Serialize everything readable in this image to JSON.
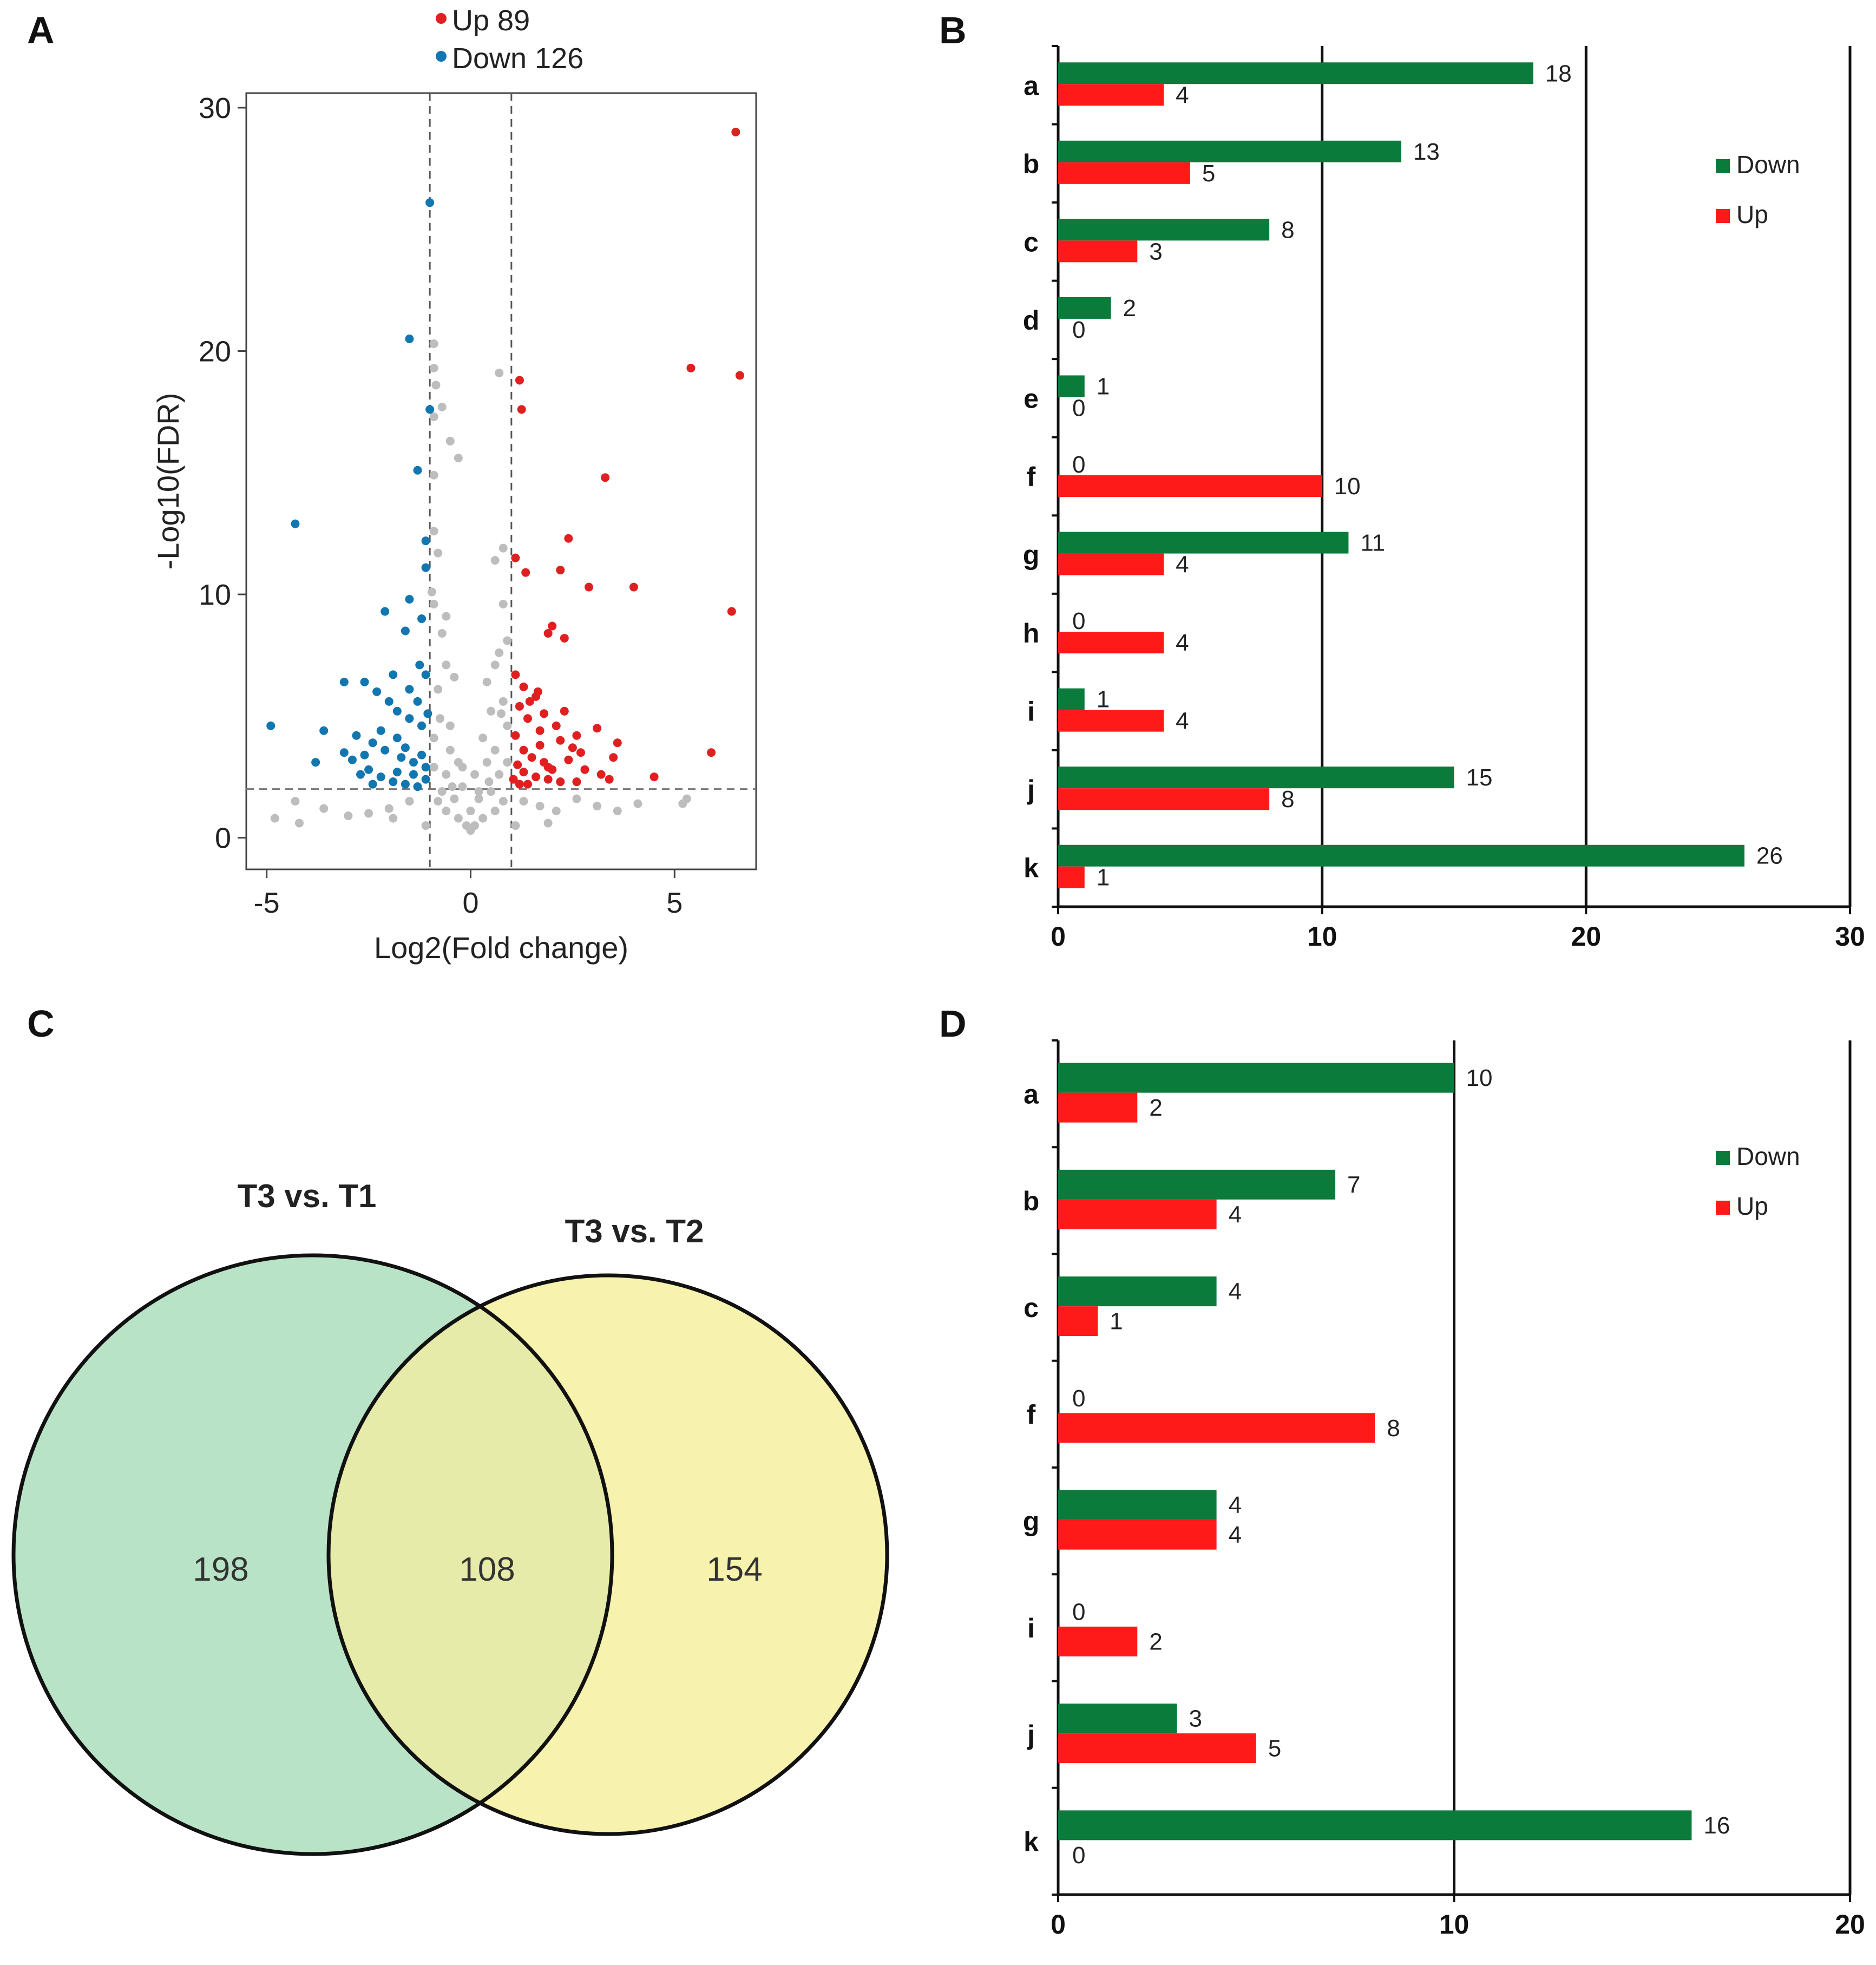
{
  "panels": {
    "A": "A",
    "B": "B",
    "C": "C",
    "D": "D"
  },
  "colors": {
    "up": "#e02020",
    "down": "#1276b0",
    "ns": "#bdbdbd",
    "bar_down": "#0a7b3a",
    "bar_up": "#ff1a1a",
    "venn_left": "#b9e3c6",
    "venn_right": "#f7f2ae",
    "venn_overlap": "#e6ebaa"
  },
  "chart_data": [
    {
      "type": "scatter",
      "id": "volcano",
      "title": "",
      "xlabel": "Log2(Fold change)",
      "ylabel": "-Log10(FDR)",
      "xlim": [
        -5.5,
        7
      ],
      "ylim": [
        -1.3,
        30.6
      ],
      "xticks": [
        "-5",
        "0",
        "5"
      ],
      "xtick_values": [
        -5,
        0,
        5
      ],
      "yticks": [
        "0",
        "10",
        "20",
        "30"
      ],
      "ytick_values": [
        0,
        10,
        20,
        30
      ],
      "thresholds": {
        "log2fc": [
          -1,
          1
        ],
        "neg_log10_fdr": 2
      },
      "legend": [
        {
          "label": "Up 89",
          "series": "up"
        },
        {
          "label": "Down 126",
          "series": "down"
        }
      ],
      "series": [
        {
          "name": "up",
          "points": [
            [
              6.5,
              29
            ],
            [
              5.4,
              19.3
            ],
            [
              6.6,
              19
            ],
            [
              1.2,
              18.8
            ],
            [
              1.25,
              17.6
            ],
            [
              3.3,
              14.8
            ],
            [
              2.4,
              12.3
            ],
            [
              1.1,
              11.5
            ],
            [
              2.2,
              11
            ],
            [
              2.9,
              10.3
            ],
            [
              4,
              10.3
            ],
            [
              1.35,
              10.9
            ],
            [
              6.4,
              9.3
            ],
            [
              2,
              8.7
            ],
            [
              2.3,
              8.2
            ],
            [
              1.9,
              8.4
            ],
            [
              5.9,
              3.5
            ],
            [
              4.5,
              2.5
            ],
            [
              1.1,
              6.7
            ],
            [
              1.3,
              6.2
            ],
            [
              1.6,
              5.8
            ],
            [
              1.8,
              5.1
            ],
            [
              2.1,
              4.6
            ],
            [
              1.2,
              5.4
            ],
            [
              1.4,
              4.9
            ],
            [
              1.7,
              4.4
            ],
            [
              2.2,
              4
            ],
            [
              2.5,
              3.7
            ],
            [
              3.1,
              4.5
            ],
            [
              3.6,
              3.9
            ],
            [
              3.5,
              3.3
            ],
            [
              3.2,
              2.6
            ],
            [
              3.4,
              2.4
            ],
            [
              2.8,
              2.8
            ],
            [
              1.1,
              4.2
            ],
            [
              1.3,
              3.6
            ],
            [
              1.5,
              3.3
            ],
            [
              1.8,
              3.1
            ],
            [
              2,
              2.8
            ],
            [
              1.15,
              3
            ],
            [
              1.3,
              2.7
            ],
            [
              1.6,
              2.5
            ],
            [
              1.9,
              2.4
            ],
            [
              2.2,
              2.3
            ],
            [
              2.6,
              2.3
            ],
            [
              1.05,
              2.4
            ],
            [
              1.4,
              2.2
            ],
            [
              2.4,
              3.2
            ],
            [
              1.7,
              3.8
            ],
            [
              2.6,
              4.2
            ],
            [
              1.2,
              2.2
            ],
            [
              1.9,
              2.9
            ],
            [
              2.7,
              3.5
            ],
            [
              1.45,
              5.6
            ],
            [
              1.65,
              6
            ],
            [
              2.3,
              5.2
            ]
          ]
        },
        {
          "name": "down",
          "points": [
            [
              -1,
              26.1
            ],
            [
              -1.5,
              20.5
            ],
            [
              -1,
              17.6
            ],
            [
              -1.3,
              15.1
            ],
            [
              -4.3,
              12.9
            ],
            [
              -1.1,
              12.2
            ],
            [
              -1.1,
              11.1
            ],
            [
              -1.5,
              9.8
            ],
            [
              -2.1,
              9.3
            ],
            [
              -1.2,
              9
            ],
            [
              -1.6,
              8.5
            ],
            [
              -4.9,
              4.6
            ],
            [
              -3.1,
              6.4
            ],
            [
              -2.6,
              6.4
            ],
            [
              -2.3,
              6
            ],
            [
              -2.0,
              5.6
            ],
            [
              -1.8,
              5.2
            ],
            [
              -1.5,
              4.9
            ],
            [
              -1.2,
              4.6
            ],
            [
              -3.6,
              4.4
            ],
            [
              -2.8,
              4.2
            ],
            [
              -2.4,
              3.9
            ],
            [
              -2.1,
              3.6
            ],
            [
              -1.7,
              3.3
            ],
            [
              -1.4,
              3.1
            ],
            [
              -1.1,
              2.9
            ],
            [
              -3.1,
              3.5
            ],
            [
              -2.9,
              3.2
            ],
            [
              -2.5,
              2.8
            ],
            [
              -2.2,
              2.5
            ],
            [
              -1.9,
              2.3
            ],
            [
              -1.6,
              2.2
            ],
            [
              -1.3,
              2.1
            ],
            [
              -1.1,
              2.4
            ],
            [
              -2.6,
              3.4
            ],
            [
              -1.8,
              4.1
            ],
            [
              -1.3,
              5.6
            ],
            [
              -1.1,
              6.7
            ],
            [
              -1.5,
              6.1
            ],
            [
              -1.9,
              6.7
            ],
            [
              -2.2,
              4.4
            ],
            [
              -1.6,
              3.7
            ],
            [
              -1.2,
              3.4
            ],
            [
              -2.7,
              2.6
            ],
            [
              -2.4,
              2.2
            ],
            [
              -1.8,
              2.7
            ],
            [
              -1.4,
              2.6
            ],
            [
              -3.8,
              3.1
            ],
            [
              -1.05,
              5.1
            ],
            [
              -1.25,
              7.1
            ]
          ]
        },
        {
          "name": "ns",
          "points": [
            [
              -0.9,
              20.3
            ],
            [
              -0.9,
              19.3
            ],
            [
              -0.85,
              18.6
            ],
            [
              -0.9,
              17.3
            ],
            [
              -0.7,
              17.7
            ],
            [
              0.7,
              19.1
            ],
            [
              -0.5,
              16.3
            ],
            [
              -0.3,
              15.6
            ],
            [
              -0.9,
              14.9
            ],
            [
              -0.9,
              12.6
            ],
            [
              -0.8,
              11.7
            ],
            [
              0.8,
              11.9
            ],
            [
              0.6,
              11.4
            ],
            [
              -0.95,
              10.1
            ],
            [
              -0.9,
              9.6
            ],
            [
              0.9,
              8.1
            ],
            [
              0.7,
              7.6
            ],
            [
              -0.7,
              8.4
            ],
            [
              -0.6,
              7.1
            ],
            [
              -0.4,
              6.6
            ],
            [
              -0.8,
              6.1
            ],
            [
              0.4,
              6.4
            ],
            [
              0.8,
              5.6
            ],
            [
              0.5,
              5.2
            ],
            [
              -0.5,
              4.6
            ],
            [
              0.3,
              4.1
            ],
            [
              0.9,
              4.6
            ],
            [
              -0.9,
              4.1
            ],
            [
              0.6,
              3.6
            ],
            [
              -0.3,
              3.1
            ],
            [
              0.1,
              2.6
            ],
            [
              -0.6,
              2.6
            ],
            [
              0.7,
              2.6
            ],
            [
              -0.2,
              2.1
            ],
            [
              0.2,
              1.6
            ],
            [
              -0.4,
              1.6
            ],
            [
              0.5,
              1.9
            ],
            [
              -0.7,
              1.9
            ],
            [
              0,
              1.1
            ],
            [
              0.3,
              0.8
            ],
            [
              -0.3,
              0.8
            ],
            [
              0,
              0.3
            ],
            [
              0.1,
              0.5
            ],
            [
              -0.1,
              0.5
            ],
            [
              0.6,
              1.1
            ],
            [
              -0.6,
              1.1
            ],
            [
              1.3,
              1.5
            ],
            [
              1.7,
              1.3
            ],
            [
              2.1,
              1.1
            ],
            [
              2.6,
              1.6
            ],
            [
              3.1,
              1.3
            ],
            [
              3.6,
              1.1
            ],
            [
              4.1,
              1.4
            ],
            [
              -1.5,
              1.5
            ],
            [
              -2,
              1.2
            ],
            [
              -2.5,
              1.0
            ],
            [
              -3,
              0.9
            ],
            [
              -3.6,
              1.2
            ],
            [
              -4.3,
              1.5
            ],
            [
              -4.8,
              0.8
            ],
            [
              -4.2,
              0.6
            ],
            [
              5.3,
              1.6
            ],
            [
              5.2,
              1.4
            ],
            [
              1.1,
              0.5
            ],
            [
              -1.1,
              0.5
            ],
            [
              1.9,
              0.6
            ],
            [
              -1.9,
              0.8
            ],
            [
              0.8,
              1.5
            ],
            [
              -0.8,
              1.5
            ],
            [
              0.4,
              3.1
            ],
            [
              -0.5,
              3.6
            ],
            [
              0.9,
              3.1
            ],
            [
              -0.9,
              2.9
            ],
            [
              0.6,
              7.1
            ],
            [
              -0.6,
              9.1
            ],
            [
              0.8,
              9.6
            ],
            [
              0.2,
              1.9
            ],
            [
              -0.2,
              2.9
            ],
            [
              0.45,
              2.3
            ],
            [
              -0.45,
              2.1
            ],
            [
              0.75,
              5.1
            ],
            [
              -0.75,
              4.9
            ]
          ]
        }
      ]
    },
    {
      "type": "bar",
      "id": "bars_B",
      "orientation": "horizontal",
      "categories": [
        "a",
        "b",
        "c",
        "d",
        "e",
        "f",
        "g",
        "h",
        "i",
        "j",
        "k"
      ],
      "series": [
        {
          "name": "Down",
          "values": [
            18,
            13,
            8,
            2,
            1,
            0,
            11,
            0,
            1,
            15,
            26
          ]
        },
        {
          "name": "Up",
          "values": [
            4,
            5,
            3,
            0,
            0,
            10,
            4,
            4,
            4,
            8,
            1
          ]
        }
      ],
      "data_labels": {
        "Down": [
          "18",
          "13",
          "8",
          "2",
          "1",
          "0",
          "11",
          "0",
          "1",
          "15",
          "26"
        ],
        "Up": [
          "4",
          "5",
          "3",
          "0",
          "0",
          "10",
          "4",
          "4",
          "4",
          "8",
          "1"
        ]
      },
      "xlim": [
        0,
        30
      ],
      "xticks": [
        "0",
        "10",
        "20",
        "30"
      ],
      "xtick_values": [
        0,
        10,
        20,
        30
      ],
      "legend": [
        "Down",
        "Up"
      ],
      "legend_position": "top-right",
      "grid": "vertical lines at major ticks"
    },
    {
      "type": "venn",
      "id": "venn_C",
      "sets": [
        {
          "name": "T3 vs. T1",
          "only": "198"
        },
        {
          "name": "T3 vs. T2",
          "only": "154"
        }
      ],
      "overlap": "108"
    },
    {
      "type": "bar",
      "id": "bars_D",
      "orientation": "horizontal",
      "categories": [
        "a",
        "b",
        "c",
        "f",
        "g",
        "i",
        "j",
        "k"
      ],
      "series": [
        {
          "name": "Down",
          "values": [
            10,
            7,
            4,
            0,
            4,
            0,
            3,
            16
          ]
        },
        {
          "name": "Up",
          "values": [
            2,
            4,
            1,
            8,
            4,
            2,
            5,
            0
          ]
        }
      ],
      "data_labels": {
        "Down": [
          "10",
          "7",
          "4",
          "0",
          "4",
          "0",
          "3",
          "16"
        ],
        "Up": [
          "2",
          "4",
          "1",
          "8",
          "4",
          "2",
          "5",
          "0"
        ]
      },
      "xlim": [
        0,
        20
      ],
      "xticks": [
        "0",
        "10",
        "20"
      ],
      "xtick_values": [
        0,
        10,
        20
      ],
      "legend": [
        "Down",
        "Up"
      ],
      "legend_position": "top-right",
      "grid": "vertical lines at major ticks"
    }
  ]
}
